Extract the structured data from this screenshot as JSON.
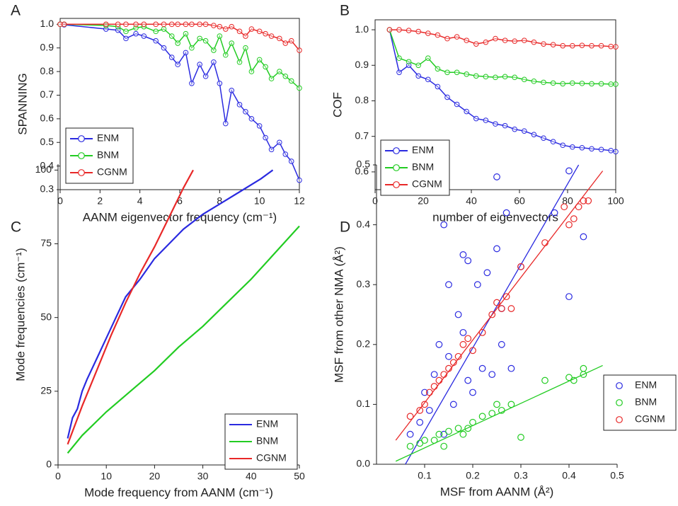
{
  "chart_data": [
    {
      "type": "line",
      "label": "A",
      "markers": true,
      "frame": true,
      "legend": "lower left",
      "x_label": "AANM eigenvector frequency (cm⁻¹)",
      "y_label": "SPANNING",
      "x": [
        0,
        0.2,
        2.3,
        2.9,
        3.3,
        3.8,
        4.2,
        4.8,
        5.2,
        5.6,
        5.9,
        6.3,
        6.6,
        7.0,
        7.3,
        7.7,
        8.0,
        8.3,
        8.6,
        9.0,
        9.3,
        9.6,
        10.0,
        10.3,
        10.6,
        11.0,
        11.3,
        11.6,
        12.0
      ],
      "series": [
        {
          "name": "ENM",
          "color": "#2a2ae0",
          "values": [
            1.0,
            0.998,
            0.98,
            0.975,
            0.94,
            0.96,
            0.95,
            0.93,
            0.9,
            0.86,
            0.83,
            0.88,
            0.75,
            0.83,
            0.78,
            0.84,
            0.75,
            0.58,
            0.72,
            0.66,
            0.63,
            0.6,
            0.57,
            0.52,
            0.47,
            0.5,
            0.45,
            0.42,
            0.34
          ]
        },
        {
          "name": "BNM",
          "color": "#22cc22",
          "values": [
            1.0,
            1.0,
            0.995,
            0.99,
            0.97,
            0.985,
            0.99,
            0.97,
            0.98,
            0.95,
            0.92,
            0.96,
            0.9,
            0.94,
            0.93,
            0.89,
            0.95,
            0.87,
            0.92,
            0.84,
            0.9,
            0.8,
            0.85,
            0.82,
            0.77,
            0.8,
            0.78,
            0.76,
            0.73
          ]
        },
        {
          "name": "CGNM",
          "color": "#e82828",
          "values": [
            1.0,
            1.0,
            1.0,
            1.0,
            1.0,
            1.0,
            1.0,
            1.0,
            1.0,
            1.0,
            1.0,
            1.0,
            1.0,
            1.0,
            1.0,
            0.995,
            0.99,
            0.98,
            0.99,
            0.97,
            0.95,
            0.98,
            0.97,
            0.96,
            0.95,
            0.94,
            0.92,
            0.93,
            0.89
          ]
        }
      ],
      "xlim": [
        0,
        12
      ],
      "xticks": [
        0,
        2,
        4,
        6,
        8,
        10,
        12
      ],
      "ylim": [
        0.3,
        1.025
      ],
      "yticks": [
        0.3,
        0.4,
        0.5,
        0.6,
        0.7,
        0.8,
        0.9,
        {
          "value": 1,
          "label": "1.0"
        }
      ]
    },
    {
      "type": "line",
      "label": "B",
      "markers": true,
      "frame": true,
      "legend": "lower left",
      "x_label": "number of eigenvectors",
      "y_label": "COF",
      "x": [
        6,
        10,
        14,
        18,
        22,
        26,
        30,
        34,
        38,
        42,
        46,
        50,
        54,
        58,
        62,
        66,
        70,
        74,
        78,
        82,
        86,
        90,
        94,
        98,
        100
      ],
      "series": [
        {
          "name": "ENM",
          "color": "#2a2ae0",
          "values": [
            1.0,
            0.88,
            0.9,
            0.87,
            0.86,
            0.84,
            0.81,
            0.79,
            0.77,
            0.75,
            0.745,
            0.735,
            0.73,
            0.72,
            0.715,
            0.705,
            0.695,
            0.685,
            0.675,
            0.67,
            0.668,
            0.665,
            0.663,
            0.66,
            0.657
          ]
        },
        {
          "name": "BNM",
          "color": "#22cc22",
          "values": [
            1.0,
            0.92,
            0.91,
            0.9,
            0.92,
            0.89,
            0.88,
            0.88,
            0.875,
            0.87,
            0.868,
            0.866,
            0.868,
            0.866,
            0.86,
            0.855,
            0.852,
            0.85,
            0.848,
            0.85,
            0.849,
            0.848,
            0.848,
            0.847,
            0.847
          ]
        },
        {
          "name": "CGNM",
          "color": "#e82828",
          "values": [
            1.0,
            1.0,
            0.998,
            0.995,
            0.99,
            0.985,
            0.975,
            0.98,
            0.97,
            0.96,
            0.965,
            0.975,
            0.97,
            0.968,
            0.97,
            0.965,
            0.96,
            0.958,
            0.955,
            0.955,
            0.956,
            0.955,
            0.955,
            0.953,
            0.952
          ]
        }
      ],
      "xlim": [
        0,
        100
      ],
      "xticks": [
        0,
        20,
        40,
        60,
        80,
        100
      ],
      "ylim": [
        0.55,
        1.028
      ],
      "yticks": [
        0.6,
        0.7,
        0.8,
        0.9,
        {
          "value": 1,
          "label": "1.0"
        }
      ]
    },
    {
      "type": "line",
      "label": "C",
      "markers": false,
      "frame": false,
      "legend": "lower right",
      "x_label": "Mode frequency from AANM (cm⁻¹)",
      "y_label": "Mode frequencies (cm⁻¹)",
      "series": [
        {
          "name": "ENM",
          "color": "#2a2ae0",
          "x": [
            2,
            3,
            4,
            5,
            6,
            8,
            10,
            12,
            14,
            17,
            20,
            23,
            26,
            30,
            34,
            38,
            42,
            44.5
          ],
          "values": [
            9,
            16,
            19,
            25,
            29,
            36,
            43,
            50,
            57,
            63,
            70,
            75,
            80,
            85,
            89,
            93,
            97,
            100
          ]
        },
        {
          "name": "BNM",
          "color": "#22cc22",
          "x": [
            2,
            5,
            10,
            15,
            20,
            25,
            30,
            35,
            40,
            45,
            50
          ],
          "values": [
            4,
            10,
            18,
            25,
            32,
            40,
            47,
            55,
            63,
            72,
            81
          ]
        },
        {
          "name": "CGNM",
          "color": "#e82828",
          "x": [
            2,
            5,
            8,
            11,
            14,
            17,
            20,
            23,
            26,
            28
          ],
          "values": [
            7,
            20,
            32,
            44,
            55,
            65,
            74,
            84,
            94,
            100
          ]
        }
      ],
      "xlim": [
        0,
        50
      ],
      "xticks": [
        0,
        10,
        20,
        30,
        40,
        50
      ],
      "ylim": [
        0,
        102
      ],
      "yticks": [
        0,
        25,
        50,
        75,
        100
      ]
    },
    {
      "type": "scatter",
      "label": "D",
      "frame": false,
      "legend": "right",
      "x_label": "MSF from AANM (Å²)",
      "y_label": "MSF from other NMA (Å²)",
      "series": [
        {
          "name": "ENM",
          "color": "#2a2ae0",
          "x": [
            0.07,
            0.09,
            0.1,
            0.11,
            0.12,
            0.13,
            0.14,
            0.15,
            0.16,
            0.17,
            0.18,
            0.19,
            0.2,
            0.21,
            0.23,
            0.24,
            0.25,
            0.26,
            0.27,
            0.3,
            0.14,
            0.15,
            0.18,
            0.19,
            0.25,
            0.26,
            0.37,
            0.4,
            0.4,
            0.43,
            0.22,
            0.28
          ],
          "values": [
            0.05,
            0.07,
            0.12,
            0.09,
            0.15,
            0.2,
            0.4,
            0.3,
            0.1,
            0.25,
            0.35,
            0.14,
            0.12,
            0.3,
            0.32,
            0.15,
            0.48,
            0.2,
            0.42,
            0.33,
            0.05,
            0.18,
            0.22,
            0.34,
            0.36,
            0.26,
            0.42,
            0.49,
            0.28,
            0.38,
            0.16,
            0.16
          ],
          "fit": {
            "x": [
              0.06,
              0.42
            ],
            "y": [
              0,
              0.5
            ]
          }
        },
        {
          "name": "BNM",
          "color": "#22cc22",
          "x": [
            0.07,
            0.09,
            0.1,
            0.12,
            0.13,
            0.15,
            0.17,
            0.19,
            0.2,
            0.22,
            0.24,
            0.25,
            0.26,
            0.28,
            0.3,
            0.35,
            0.4,
            0.41,
            0.43,
            0.43,
            0.14,
            0.18
          ],
          "values": [
            0.03,
            0.035,
            0.04,
            0.04,
            0.05,
            0.055,
            0.06,
            0.06,
            0.07,
            0.08,
            0.085,
            0.1,
            0.09,
            0.1,
            0.045,
            0.14,
            0.145,
            0.14,
            0.15,
            0.16,
            0.03,
            0.05
          ],
          "fit": {
            "x": [
              0.04,
              0.47
            ],
            "y": [
              0.005,
              0.165
            ]
          }
        },
        {
          "name": "CGNM",
          "color": "#e82828",
          "x": [
            0.07,
            0.09,
            0.1,
            0.11,
            0.12,
            0.13,
            0.14,
            0.15,
            0.16,
            0.17,
            0.18,
            0.19,
            0.2,
            0.22,
            0.24,
            0.25,
            0.26,
            0.27,
            0.28,
            0.3,
            0.35,
            0.39,
            0.4,
            0.41,
            0.42,
            0.43,
            0.44
          ],
          "values": [
            0.08,
            0.09,
            0.1,
            0.12,
            0.13,
            0.14,
            0.15,
            0.16,
            0.17,
            0.18,
            0.2,
            0.21,
            0.19,
            0.22,
            0.25,
            0.27,
            0.26,
            0.28,
            0.26,
            0.33,
            0.37,
            0.43,
            0.4,
            0.41,
            0.43,
            0.44,
            0.44
          ],
          "fit": {
            "x": [
              0.04,
              0.47
            ],
            "y": [
              0.04,
              0.49
            ]
          }
        }
      ],
      "xlim": [
        0,
        0.5
      ],
      "xticks": [
        0.1,
        0.2,
        0.3,
        0.4,
        0.5
      ],
      "ylim": [
        0,
        0.5
      ],
      "yticks": [
        {
          "value": 0,
          "label": "0.0"
        },
        0.1,
        0.2,
        0.3,
        0.4,
        0.5
      ]
    }
  ]
}
